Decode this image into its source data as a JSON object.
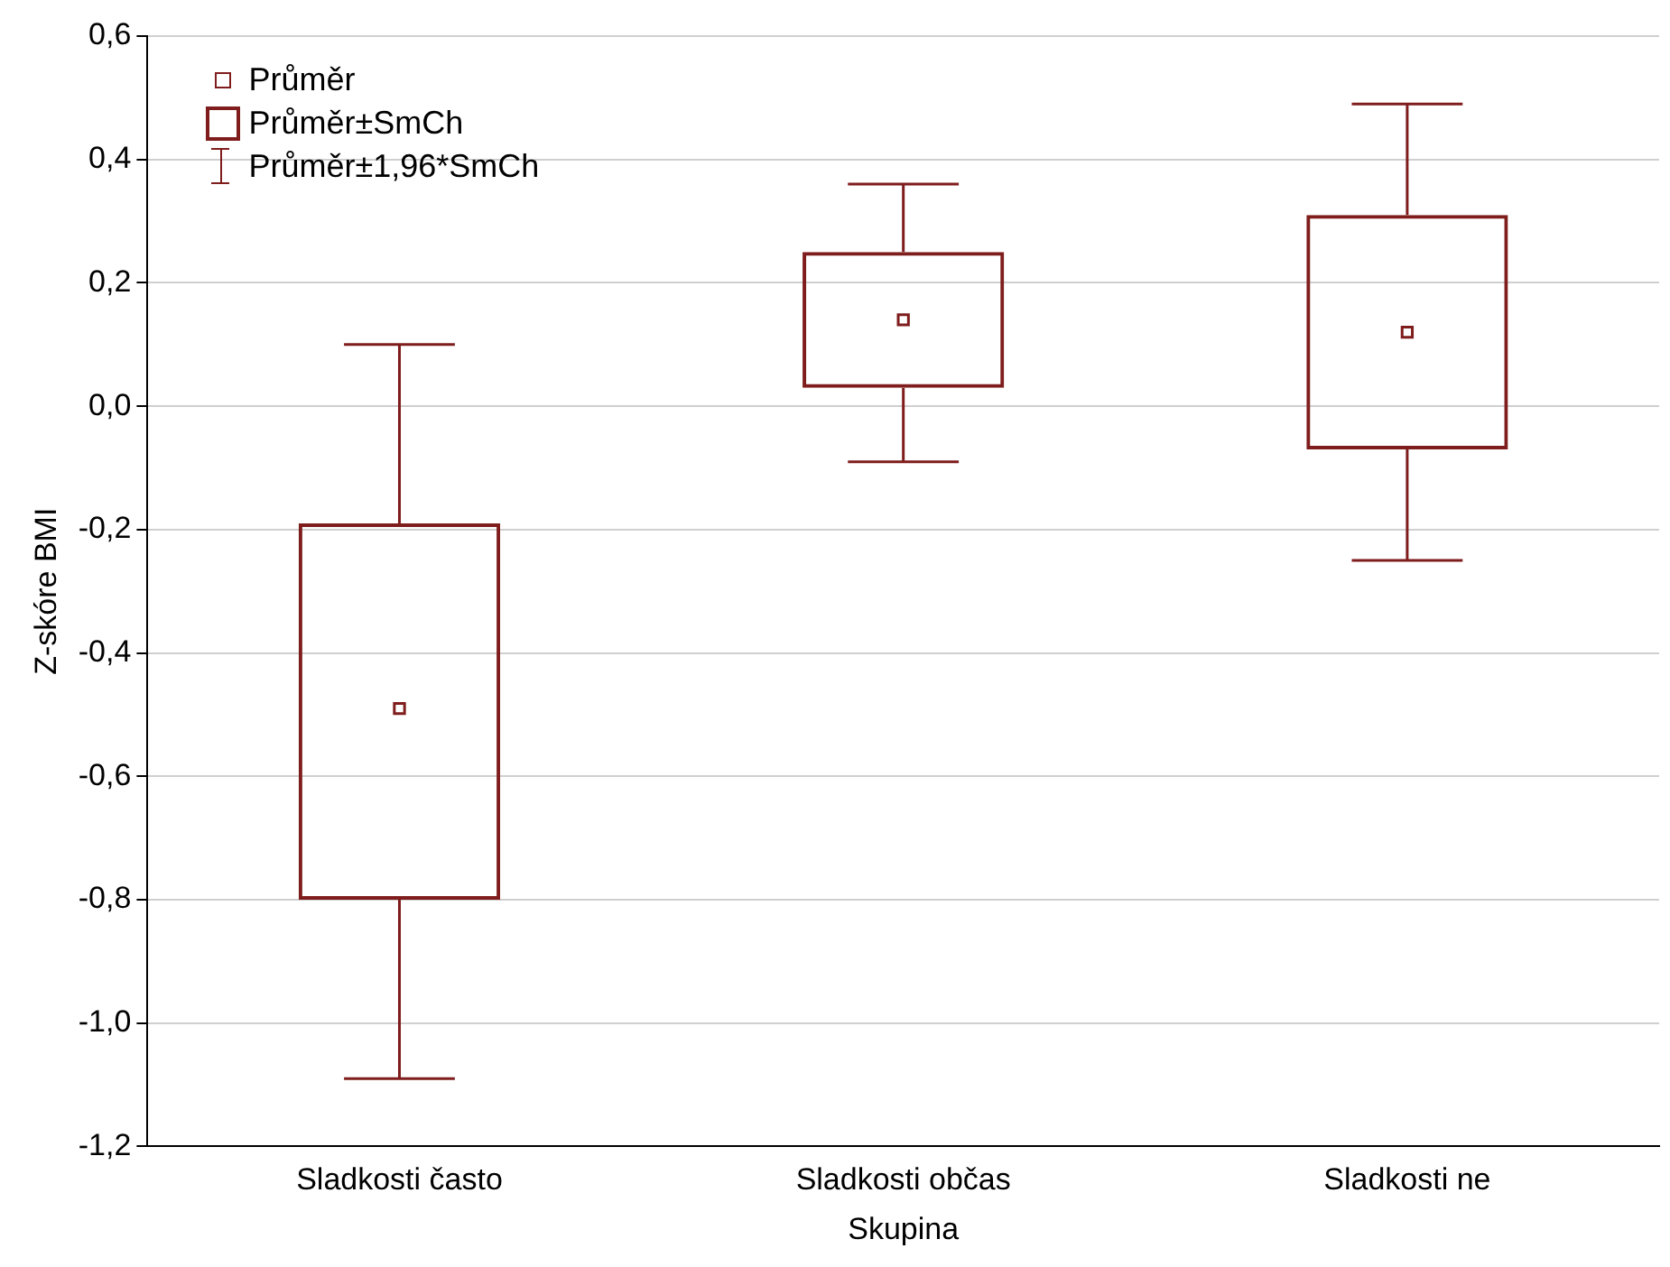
{
  "chart_data": {
    "type": "box",
    "xlabel": "Skupina",
    "ylabel": "Z-skóre BMI",
    "categories": [
      "Sladkosti často",
      "Sladkosti občas",
      "Sladkosti ne"
    ],
    "color": "#7f1d1d",
    "boxes": [
      {
        "low": -1.09,
        "q1": -0.8,
        "q3": -0.19,
        "high": 0.1,
        "mean": -0.49
      },
      {
        "low": -0.09,
        "q1": 0.03,
        "q3": 0.25,
        "high": 0.36,
        "mean": 0.14
      },
      {
        "low": -0.25,
        "q1": -0.07,
        "q3": 0.31,
        "high": 0.49,
        "mean": 0.12
      }
    ],
    "ylim": [
      -1.2,
      0.6
    ],
    "yticks": [
      {
        "value": -1.2,
        "label": "-1,2"
      },
      {
        "value": -1.0,
        "label": "-1,0"
      },
      {
        "value": -0.8,
        "label": "-0,8"
      },
      {
        "value": -0.6,
        "label": "-0,6"
      },
      {
        "value": -0.4,
        "label": "-0,4"
      },
      {
        "value": -0.2,
        "label": "-0,2"
      },
      {
        "value": 0,
        "label": "0,0"
      },
      {
        "value": 0.2,
        "label": "0,2"
      },
      {
        "value": 0.4,
        "label": "0,4"
      },
      {
        "value": 0.6,
        "label": "0,6"
      }
    ],
    "grid": "y",
    "annotations": [
      "Průměr",
      "Průměr±SmCh",
      "Průměr±1,96*SmCh"
    ]
  }
}
